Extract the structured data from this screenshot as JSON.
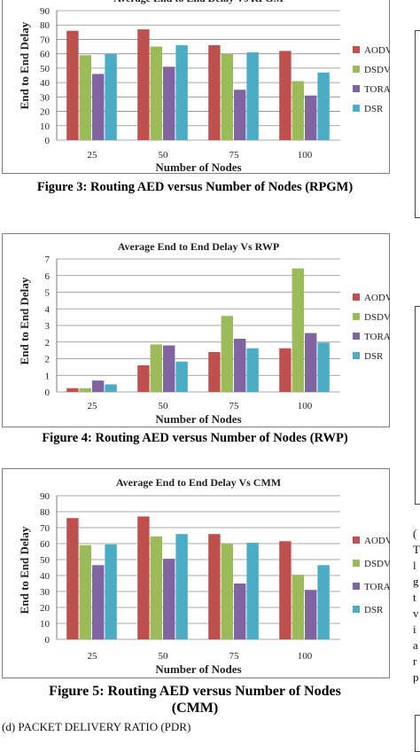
{
  "colors": {
    "AODV": "#c0504d",
    "DSDV": "#9bbb59",
    "TORA": "#8064a2",
    "DSR": "#4bacc6",
    "gridline": "#8c8c8c",
    "frame": "#7f7f7f"
  },
  "chart_data": [
    {
      "type": "bar",
      "title": "Average End to End Delay Vs RPGM",
      "xlabel": "Number of Nodes",
      "ylabel": "End to End Delay",
      "categories": [
        "25",
        "50",
        "75",
        "100"
      ],
      "ylim": [
        0,
        90
      ],
      "yticks": [
        "0",
        "10",
        "20",
        "30",
        "40",
        "50",
        "60",
        "70",
        "80",
        "90"
      ],
      "legend_position": "right",
      "grid": true,
      "series": [
        {
          "name": "AODV",
          "values": [
            76,
            77,
            66,
            62
          ]
        },
        {
          "name": "DSDV",
          "values": [
            59,
            65,
            60,
            41
          ]
        },
        {
          "name": "TORA",
          "values": [
            46,
            51,
            35,
            31
          ]
        },
        {
          "name": "DSR",
          "values": [
            60,
            66,
            61,
            47
          ]
        }
      ]
    },
    {
      "type": "bar",
      "title": "Average End to End Delay Vs RWP",
      "xlabel": "Number of Nodes",
      "ylabel": "End to End Delay",
      "categories": [
        "25",
        "50",
        "75",
        "100"
      ],
      "ylim": [
        0,
        7
      ],
      "yticks": [
        "0",
        "1",
        "2",
        "2",
        "3",
        "4",
        "5",
        "6",
        "7"
      ],
      "legend_position": "right",
      "grid": true,
      "series": [
        {
          "name": "AODV",
          "values": [
            0.2,
            1.4,
            2.1,
            2.3
          ]
        },
        {
          "name": "DSDV",
          "values": [
            0.2,
            2.5,
            4.0,
            6.5
          ]
        },
        {
          "name": "TORA",
          "values": [
            0.6,
            2.45,
            2.8,
            3.1
          ]
        },
        {
          "name": "DSR",
          "values": [
            0.4,
            1.6,
            2.3,
            2.6
          ]
        }
      ]
    },
    {
      "type": "bar",
      "title": "Average End to End Delay Vs CMM",
      "xlabel": "Number of Nodes",
      "ylabel": "End to End Delay",
      "categories": [
        "25",
        "50",
        "75",
        "100"
      ],
      "ylim": [
        0,
        90
      ],
      "yticks": [
        "0",
        "10",
        "20",
        "30",
        "40",
        "50",
        "60",
        "70",
        "80",
        "90"
      ],
      "legend_position": "right",
      "grid": true,
      "series": [
        {
          "name": "AODV",
          "values": [
            76,
            77,
            66,
            61.5
          ]
        },
        {
          "name": "DSDV",
          "values": [
            59,
            64.5,
            60,
            40.5
          ]
        },
        {
          "name": "TORA",
          "values": [
            46.5,
            50.5,
            35,
            31
          ]
        },
        {
          "name": "DSR",
          "values": [
            59.5,
            66,
            60.5,
            46.5
          ]
        }
      ]
    }
  ],
  "captions": {
    "figure3": "Figure 3: Routing AED versus Number of Nodes (RPGM)",
    "figure4": "Figure 4: Routing AED versus Number of Nodes (RWP)",
    "figure5_line1": "Figure 5: Routing AED versus Number of Nodes",
    "figure5_line2": "(CMM)"
  },
  "right_text": {
    "line1": "(",
    "line2": "T",
    "line3": "l",
    "line4": "g",
    "line5": "t",
    "line6": "v",
    "line7": "i",
    "line8": "a",
    "line9": "r",
    "line10": "p"
  },
  "bottom_text": "(d)  PACKET DELIVERY RATIO (PDR)"
}
